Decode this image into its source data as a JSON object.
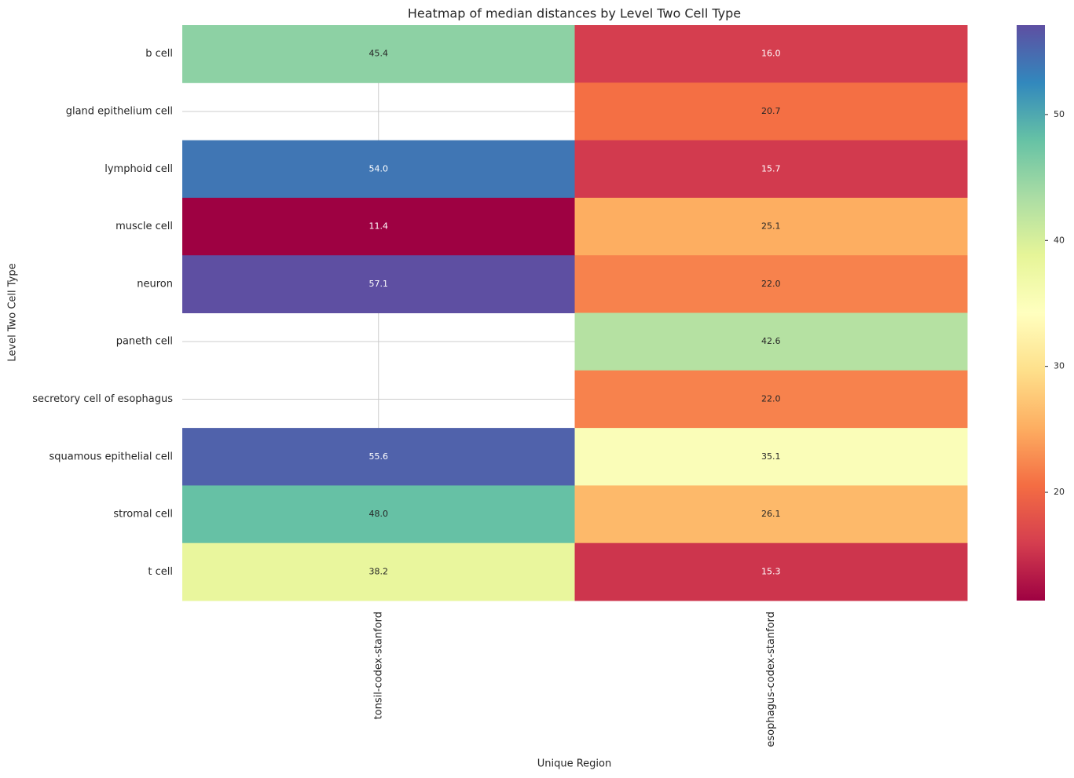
{
  "chart_data": {
    "type": "heatmap",
    "title": "Heatmap of median distances by Level Two Cell Type",
    "x_label": "Unique Region",
    "y_label": "Level Two Cell Type",
    "x_categories": [
      "tonsil-codex-stanford",
      "esophagus-codex-stanford"
    ],
    "y_categories": [
      "b cell",
      "gland epithelium cell",
      "lymphoid cell",
      "muscle cell",
      "neuron",
      "paneth cell",
      "secretory cell of esophagus",
      "squamous epithelial cell",
      "stromal cell",
      "t cell"
    ],
    "values": [
      [
        45.4,
        16.0
      ],
      [
        null,
        20.7
      ],
      [
        54.0,
        15.7
      ],
      [
        11.4,
        25.1
      ],
      [
        57.1,
        22.0
      ],
      [
        null,
        42.6
      ],
      [
        null,
        22.0
      ],
      [
        55.6,
        35.1
      ],
      [
        48.0,
        26.1
      ],
      [
        38.2,
        15.3
      ]
    ],
    "value_labels": [
      [
        "45.4",
        "16.0"
      ],
      [
        null,
        "20.7"
      ],
      [
        "54.0",
        "15.7"
      ],
      [
        "11.4",
        "25.1"
      ],
      [
        "57.1",
        "22.0"
      ],
      [
        null,
        "42.6"
      ],
      [
        null,
        "22.0"
      ],
      [
        "55.6",
        "35.1"
      ],
      [
        "48.0",
        "26.1"
      ],
      [
        "38.2",
        "15.3"
      ]
    ],
    "colormap": "Spectral",
    "clim": [
      11.4,
      57.1
    ],
    "colorbar_ticks": [
      20,
      30,
      40,
      50
    ],
    "grid": true
  }
}
